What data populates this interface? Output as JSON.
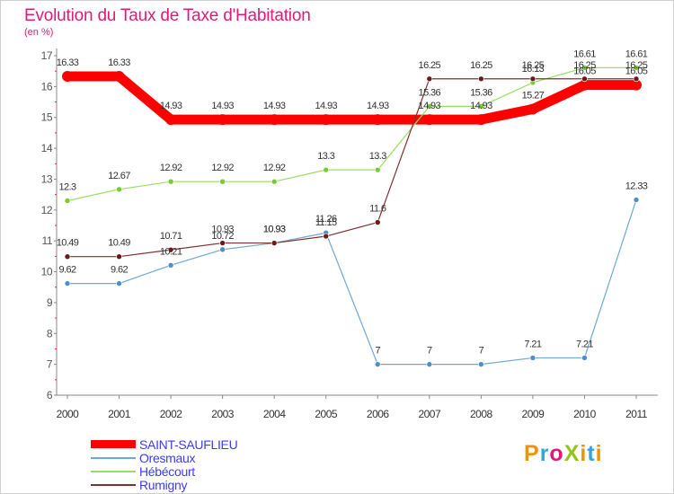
{
  "title": "Evolution du Taux de Taxe d'Habitation",
  "subtitle": "(en %)",
  "brand": "ProXiti",
  "chart_data": {
    "type": "line",
    "title": "Evolution du Taux de Taxe d'Habitation",
    "ylabel": "(en %)",
    "xlabel": "",
    "ylim": [
      6,
      17
    ],
    "yticks": [
      "6",
      "7",
      "8",
      "9",
      "10",
      "11",
      "12",
      "13",
      "14",
      "15",
      "16",
      "17"
    ],
    "grid": false,
    "legend": "bottom-left",
    "x": [
      "2000",
      "2001",
      "2002",
      "2003",
      "2004",
      "2005",
      "2006",
      "2007",
      "2008",
      "2009",
      "2010",
      "2011"
    ],
    "series": [
      {
        "name": "SAINT-SAUFLIEU",
        "color": "#ff0000",
        "values": [
          16.33,
          16.33,
          14.93,
          14.93,
          14.93,
          14.93,
          14.93,
          14.93,
          14.93,
          15.27,
          16.05,
          16.05
        ],
        "labels": [
          "16.33",
          "16.33",
          "14.93",
          "14.93",
          "14.93",
          "14.93",
          "14.93",
          "14.93",
          "14.93",
          "15.27",
          "16.05",
          "16.05"
        ]
      },
      {
        "name": "Oresmaux",
        "color": "#6fa8d6",
        "values": [
          9.62,
          9.62,
          10.21,
          10.72,
          10.93,
          11.26,
          7,
          7,
          7,
          7.21,
          7.21,
          12.33
        ],
        "labels": [
          "9.62",
          "9.62",
          "10.21",
          "10.72",
          "10.93",
          "11.26",
          "7",
          "7",
          "7",
          "7.21",
          "7.21",
          "12.33"
        ]
      },
      {
        "name": "Hébécourt",
        "color": "#99dd66",
        "values": [
          12.3,
          12.67,
          12.92,
          12.92,
          12.92,
          13.3,
          13.3,
          15.36,
          15.36,
          16.13,
          16.61,
          16.61
        ],
        "labels": [
          "12.3",
          "12.67",
          "12.92",
          "12.92",
          "12.92",
          "13.3",
          "13.3",
          "15.36",
          "15.36",
          "16.13",
          "16.61",
          "16.61"
        ]
      },
      {
        "name": "Rumigny",
        "color": "#803030",
        "values": [
          10.49,
          10.49,
          10.71,
          10.93,
          10.93,
          11.15,
          11.6,
          16.25,
          16.25,
          16.25,
          16.25,
          16.25
        ],
        "labels": [
          "10.49",
          "10.49",
          "10.71",
          "10.93",
          "10.93",
          "11.15",
          "11.6",
          "16.25",
          "16.25",
          "16.25",
          "16.25",
          "16.25"
        ]
      }
    ]
  }
}
